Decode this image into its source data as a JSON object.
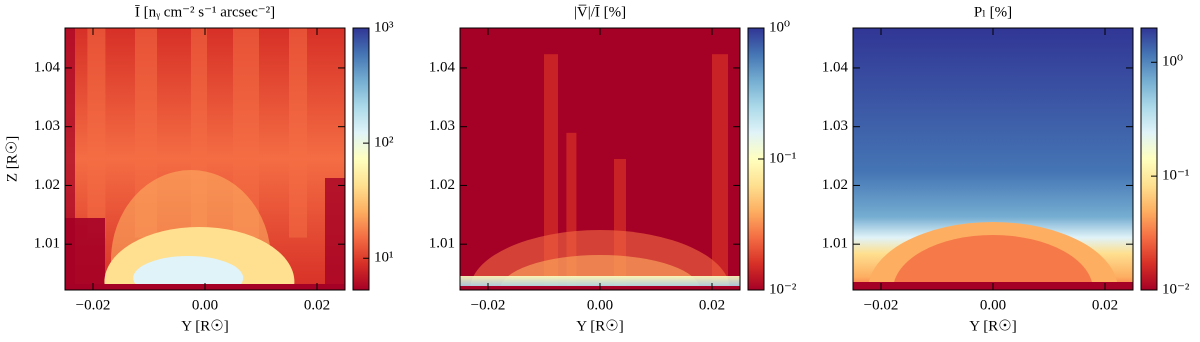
{
  "chart_data": [
    {
      "type": "heatmap",
      "title": "Ī [nᵧ cm⁻² s⁻¹ arcsec⁻²]",
      "xlabel": "Y [R☉]",
      "ylabel": "Z [R☉]",
      "xlim": [
        -0.025,
        0.025
      ],
      "xticks": [
        {
          "value": -0.02,
          "label": "−0.02"
        },
        {
          "value": 0,
          "label": "0.00"
        },
        0.02
      ],
      "ylim": [
        1.0022,
        1.0468
      ],
      "yticks": [
        1.01,
        1.02,
        1.03,
        1.04
      ],
      "colorbar": {
        "scale": "log",
        "lim": [
          5.3,
          1000
        ],
        "ticks": [
          {
            "value": 10,
            "label": "10¹"
          },
          {
            "value": 100,
            "label": "10²"
          },
          {
            "value": 1000,
            "label": "10³"
          }
        ]
      },
      "colormap": [
        "#a50026",
        "#d73027",
        "#f46d43",
        "#fdae61",
        "#fee090",
        "#ffffbf",
        "#e0f3f8",
        "#abd9e9",
        "#74add1",
        "#4575b4",
        "#313695"
      ]
    },
    {
      "type": "heatmap",
      "title": "|V̅|/Ī [%]",
      "xlabel": "Y [R☉]",
      "xlim": [
        -0.025,
        0.025
      ],
      "xticks": [
        {
          "value": -0.02,
          "label": "−0.02"
        },
        {
          "value": 0,
          "label": "0.00"
        },
        0.02
      ],
      "ylim": [
        1.0022,
        1.0468
      ],
      "yticks": [
        1.01,
        1.02,
        1.03,
        1.04
      ],
      "colorbar": {
        "scale": "log",
        "lim": [
          0.01,
          1
        ],
        "ticks": [
          {
            "value": 0.01,
            "label": "10⁻²"
          },
          {
            "value": 0.1,
            "label": "10⁻¹"
          },
          {
            "value": 1,
            "label": "10⁰"
          }
        ]
      },
      "colormap": [
        "#a50026",
        "#d73027",
        "#f46d43",
        "#fdae61",
        "#fee090",
        "#ffffbf",
        "#e0f3f8",
        "#abd9e9",
        "#74add1",
        "#4575b4",
        "#313695"
      ]
    },
    {
      "type": "heatmap",
      "title": "Pₗ [%]",
      "xlabel": "Y [R☉]",
      "xlim": [
        -0.025,
        0.025
      ],
      "xticks": [
        {
          "value": -0.02,
          "label": "−0.02"
        },
        {
          "value": 0,
          "label": "0.00"
        },
        0.02
      ],
      "ylim": [
        1.0022,
        1.0468
      ],
      "yticks": [
        1.01,
        1.02,
        1.03,
        1.04
      ],
      "colorbar": {
        "scale": "log",
        "lim": [
          0.01,
          2
        ],
        "ticks": [
          {
            "value": 0.01,
            "label": "10⁻²"
          },
          {
            "value": 0.1,
            "label": "10⁻¹"
          },
          {
            "value": 1,
            "label": "10⁰"
          }
        ]
      },
      "colormap": [
        "#a50026",
        "#d73027",
        "#f46d43",
        "#fdae61",
        "#fee090",
        "#ffffbf",
        "#e0f3f8",
        "#abd9e9",
        "#74add1",
        "#4575b4",
        "#313695"
      ]
    }
  ]
}
